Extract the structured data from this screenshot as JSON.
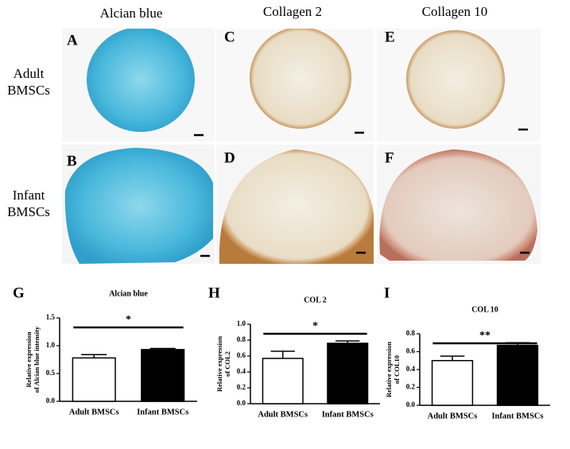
{
  "columns": [
    "Alcian blue",
    "Collagen 2",
    "Collagen 10"
  ],
  "rows": [
    "Adult BMSCs",
    "Infant BMSCs"
  ],
  "panels": [
    [
      "A",
      "C",
      "E"
    ],
    [
      "B",
      "D",
      "F"
    ]
  ],
  "chart_data": [
    {
      "type": "bar",
      "panel": "G",
      "title": "Alcian blue",
      "ylabel": [
        "Relative expression",
        "of Alcian blue intensity"
      ],
      "categories": [
        "Adult BMSCs",
        "Infant BMSCs"
      ],
      "values": [
        0.78,
        0.93
      ],
      "errors": [
        0.06,
        0.02
      ],
      "colors": [
        "#ffffff",
        "#000000"
      ],
      "significance": "*",
      "ylim": [
        0,
        1.5
      ],
      "yticks": [
        {
          "value": 0,
          "label": "0.0"
        },
        {
          "value": 0.5,
          "label": "0.5"
        },
        {
          "value": 1,
          "label": "1.0"
        },
        {
          "value": 1.5,
          "label": "1.5"
        }
      ]
    },
    {
      "type": "bar",
      "panel": "H",
      "title": "COL 2",
      "ylabel": [
        "Relative expression",
        "of COL2"
      ],
      "categories": [
        "Adult BMSCs",
        "Infant BMSCs"
      ],
      "values": [
        0.57,
        0.76
      ],
      "errors": [
        0.09,
        0.03
      ],
      "colors": [
        "#ffffff",
        "#000000"
      ],
      "significance": "*",
      "ylim": [
        0,
        1
      ],
      "yticks": [
        {
          "value": 0,
          "label": "0.0"
        },
        0.2,
        0.4,
        0.6,
        0.8,
        {
          "value": 1,
          "label": "1.0"
        }
      ]
    },
    {
      "type": "bar",
      "panel": "I",
      "title": "COL 10",
      "ylabel": [
        "Relative expression",
        "of COL10"
      ],
      "categories": [
        "Adult BMSCs",
        "Infant BMSCs"
      ],
      "values": [
        0.5,
        0.67
      ],
      "errors": [
        0.05,
        0.03
      ],
      "colors": [
        "#ffffff",
        "#000000"
      ],
      "significance": "**",
      "ylim": [
        0,
        0.8
      ],
      "yticks": [
        {
          "value": 0,
          "label": "0.0"
        },
        0.2,
        0.4,
        0.6,
        0.8
      ]
    }
  ]
}
